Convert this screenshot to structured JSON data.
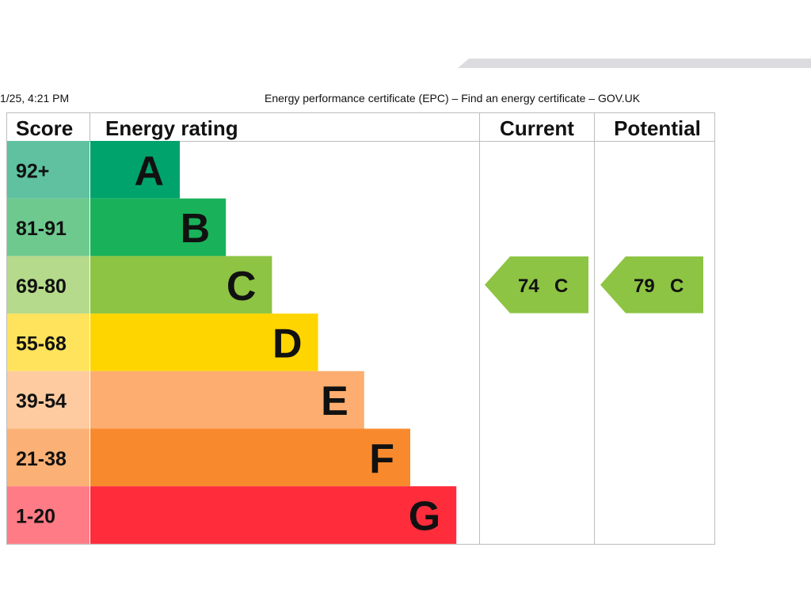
{
  "header": {
    "print_date": "1/25, 4:21 PM",
    "page_title": "Energy performance certificate (EPC) – Find an energy certificate – GOV.UK"
  },
  "chart_data": {
    "type": "bar",
    "columns": {
      "score": "Score",
      "rating": "Energy rating",
      "current": "Current",
      "potential": "Potential"
    },
    "bands": [
      {
        "score": "92+",
        "letter": "A",
        "color": "#00a36b",
        "score_color": "#5fc1a0"
      },
      {
        "score": "81-91",
        "letter": "B",
        "color": "#19b25a",
        "score_color": "#6ec98f"
      },
      {
        "score": "69-80",
        "letter": "C",
        "color": "#8dc443",
        "score_color": "#b5da8b"
      },
      {
        "score": "55-68",
        "letter": "D",
        "color": "#ffd500",
        "score_color": "#ffe35d"
      },
      {
        "score": "39-54",
        "letter": "E",
        "color": "#fcad6f",
        "score_color": "#fdcb9f"
      },
      {
        "score": "21-38",
        "letter": "F",
        "color": "#f88a2d",
        "score_color": "#fbb175"
      },
      {
        "score": "1-20",
        "letter": "G",
        "color": "#ff2c3c",
        "score_color": "#ff7b86"
      }
    ],
    "current": {
      "value": 74,
      "letter": "C",
      "color": "#8dc443"
    },
    "potential": {
      "value": 79,
      "letter": "C",
      "color": "#8dc443"
    }
  }
}
